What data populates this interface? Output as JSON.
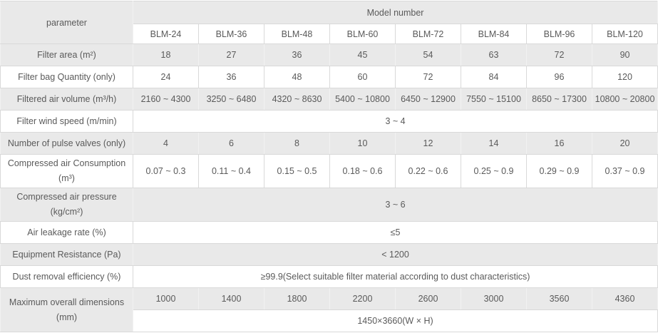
{
  "colors": {
    "row_stripe": "#e9e9e9",
    "cell_border": "#d9d9d9",
    "text": "#5a5a5a",
    "background": "#ffffff"
  },
  "table": {
    "param_header": "parameter",
    "model_header": "Model number",
    "models": [
      "BLM-24",
      "BLM-36",
      "BLM-48",
      "BLM-60",
      "BLM-72",
      "BLM-84",
      "BLM-96",
      "BLM-120"
    ],
    "rows": [
      {
        "lines": [
          "Filter area (m²)"
        ],
        "values": [
          "18",
          "27",
          "36",
          "45",
          "54",
          "63",
          "72",
          "90"
        ]
      },
      {
        "lines": [
          "Filter bag Quantity (only)"
        ],
        "values": [
          "24",
          "36",
          "48",
          "60",
          "72",
          "84",
          "96",
          "120"
        ]
      },
      {
        "lines": [
          "Filtered air volume (m³/h)"
        ],
        "values": [
          "2160 ~ 4300",
          "3250 ~ 6480",
          "4320 ~ 8630",
          "5400 ~ 10800",
          "6450 ~ 12900",
          "7550 ~ 15100",
          "8650 ~ 17300",
          "10800 ~ 20800"
        ]
      },
      {
        "lines": [
          "Filter wind speed (m/min)"
        ],
        "span": "3 ~ 4"
      },
      {
        "lines": [
          "Number of pulse valves (only)"
        ],
        "values": [
          "4",
          "6",
          "8",
          "10",
          "12",
          "14",
          "16",
          "20"
        ]
      },
      {
        "lines": [
          "Compressed air Consumption",
          "(m³)"
        ],
        "values": [
          "0.07 ~ 0.3",
          "0.11 ~ 0.4",
          "0.15 ~ 0.5",
          "0.18 ~ 0.6",
          "0.22 ~ 0.6",
          "0.25 ~ 0.9",
          "0.29 ~ 0.9",
          "0.37 ~ 0.9"
        ]
      },
      {
        "lines": [
          "Compressed air pressure",
          "(kg/cm²)"
        ],
        "span": "3 ~ 6"
      },
      {
        "lines": [
          "Air leakage rate (%)"
        ],
        "span": "≤5"
      },
      {
        "lines": [
          "Equipment Resistance (Pa)"
        ],
        "span": "< 1200"
      },
      {
        "lines": [
          "Dust removal efficiency (%)"
        ],
        "span": "≥99.9(Select suitable filter material according to dust characteristics)"
      },
      {
        "lines": [
          "Maximum overall dimensions",
          "(mm)"
        ],
        "values": [
          "1000",
          "1400",
          "1800",
          "2200",
          "2600",
          "3000",
          "3560",
          "4360"
        ],
        "extra_span": "1450×3660(W × H)"
      }
    ]
  }
}
